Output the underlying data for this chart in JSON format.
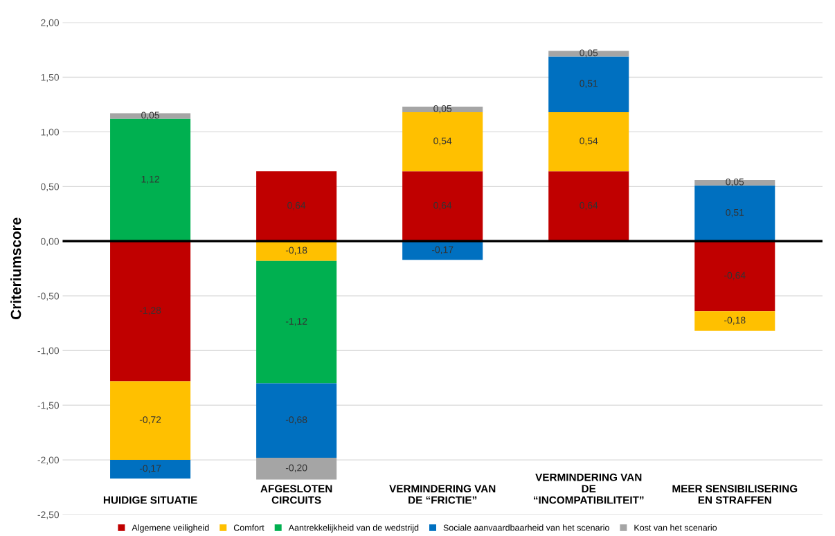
{
  "chart_data": {
    "type": "bar",
    "stacked": true,
    "ylabel": "Criteriumscore",
    "categories": [
      "HUIDIGE SITUATIE",
      "AFGESLOTEN\nCIRCUITS",
      "VERMINDERING VAN\nDE “FRICTIE”",
      "VERMINDERING VAN\nDE\n“INCOMPATIBILITEIT”",
      "MEER SENSIBILISERING\nEN STRAFFEN"
    ],
    "series": [
      {
        "name": "Algemene veiligheid",
        "color": "#c00000",
        "values": [
          -1.28,
          0.64,
          0.64,
          0.64,
          -0.64
        ],
        "value_labels": [
          "-1,28",
          "0,64",
          "0,64",
          "0,64",
          "-0,64"
        ]
      },
      {
        "name": "Comfort",
        "color": "#ffc000",
        "values": [
          -0.72,
          -0.18,
          0.54,
          0.54,
          -0.18
        ],
        "value_labels": [
          "-0,72",
          "-0,18",
          "0,54",
          "0,54",
          "-0,18"
        ]
      },
      {
        "name": "Aantrekkelijkheid van de wedstrijd",
        "color": "#00b050",
        "values": [
          1.12,
          -1.12,
          null,
          null,
          null
        ],
        "value_labels": [
          "1,12",
          "-1,12",
          null,
          null,
          null
        ]
      },
      {
        "name": "Sociale aanvaardbaarheid van het scenario",
        "color": "#0070c0",
        "values": [
          -0.17,
          -0.68,
          -0.17,
          0.51,
          0.51
        ],
        "value_labels": [
          "-0,17",
          "-0,68",
          "-0,17",
          "0,51",
          "0,51"
        ]
      },
      {
        "name": "Kost van het scenario",
        "color": "#a5a5a5",
        "values": [
          0.05,
          -0.2,
          0.05,
          0.05,
          0.05
        ],
        "value_labels": [
          "0,05",
          "-0,20",
          "0,05",
          "0,05",
          "0,05"
        ]
      }
    ],
    "ylim": [
      -2.5,
      2.0
    ],
    "yticks": [
      {
        "value": -2.5,
        "label": "-2,50"
      },
      {
        "value": -2.0,
        "label": "-2,00"
      },
      {
        "value": -1.5,
        "label": "-1,50"
      },
      {
        "value": -1.0,
        "label": "-1,00"
      },
      {
        "value": -0.5,
        "label": "-0,50"
      },
      {
        "value": 0,
        "label": "0,00"
      },
      {
        "value": 0.5,
        "label": "0,50"
      },
      {
        "value": 1.0,
        "label": "1,00"
      },
      {
        "value": 1.5,
        "label": "1,50"
      },
      {
        "value": 2.0,
        "label": "2,00"
      }
    ],
    "grid": "y",
    "legend": "bottom"
  }
}
